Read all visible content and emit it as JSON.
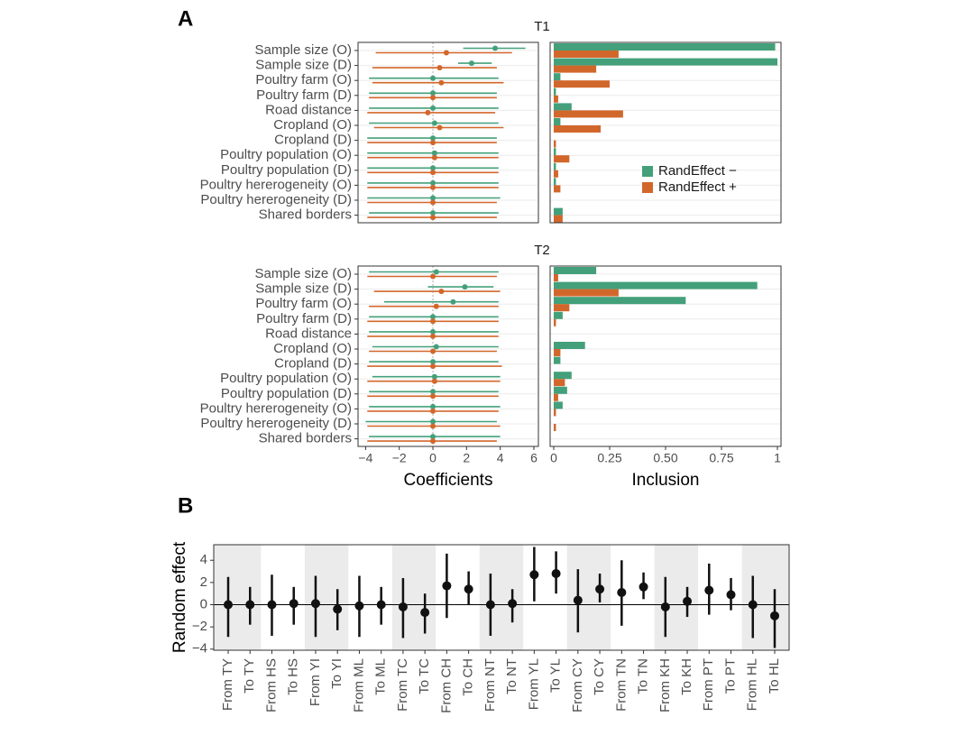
{
  "chart_data": [
    {
      "type": "coef_interval",
      "panel_label": "A",
      "strip": "T1",
      "categories": [
        "Sample size (O)",
        "Sample size (D)",
        "Poultry farm (O)",
        "Poultry farm (D)",
        "Road distance",
        "Cropland (O)",
        "Cropland (D)",
        "Poultry population (O)",
        "Poultry population (D)",
        "Poultry hererogeneity (O)",
        "Poultry hererogeneity (D)",
        "Shared borders"
      ],
      "series": [
        {
          "color": "#43a07a",
          "values": [
            3.7,
            2.3,
            0.0,
            0.0,
            0.0,
            0.1,
            0.0,
            0.1,
            0.0,
            0.0,
            0.0,
            0.0
          ],
          "lower": [
            1.8,
            1.5,
            -3.8,
            -3.8,
            -3.8,
            -3.8,
            -3.9,
            -3.9,
            -3.9,
            -3.9,
            -3.9,
            -3.8
          ],
          "upper": [
            5.5,
            3.5,
            3.9,
            3.8,
            3.9,
            3.9,
            3.8,
            3.9,
            3.9,
            3.9,
            4.0,
            3.9
          ]
        },
        {
          "color": "#d2672b",
          "values": [
            0.8,
            0.4,
            0.5,
            0.0,
            -0.3,
            0.4,
            0.0,
            0.1,
            0.0,
            0.0,
            0.0,
            0.0
          ],
          "lower": [
            -3.4,
            -3.6,
            -3.6,
            -3.8,
            -3.9,
            -3.5,
            -3.9,
            -3.9,
            -3.9,
            -3.9,
            -3.9,
            -3.9
          ],
          "upper": [
            4.7,
            3.8,
            4.2,
            3.8,
            3.7,
            4.2,
            3.8,
            3.9,
            3.9,
            3.9,
            3.8,
            3.8
          ]
        }
      ],
      "xlim": [
        -4.45,
        6.27
      ],
      "reference_x": 0,
      "grid": true
    },
    {
      "type": "bar",
      "series": [
        {
          "name": "RandEffect −",
          "color": "#43a07a",
          "values": [
            0.99,
            1.0,
            0.03,
            0.01,
            0.08,
            0.03,
            0.0,
            0.01,
            0.01,
            0.01,
            0.0,
            0.04
          ]
        },
        {
          "name": "RandEffect +",
          "color": "#d2672b",
          "values": [
            0.29,
            0.19,
            0.25,
            0.02,
            0.31,
            0.21,
            0.01,
            0.07,
            0.02,
            0.03,
            0.0,
            0.04
          ]
        }
      ],
      "xlim": [
        -0.016,
        1.016
      ],
      "grid": true,
      "legend": "center-right"
    },
    {
      "type": "coef_interval",
      "strip": "T2",
      "categories": [
        "Sample size (O)",
        "Sample size (D)",
        "Poultry farm (O)",
        "Poultry farm (D)",
        "Road distance",
        "Cropland (O)",
        "Cropland (D)",
        "Poultry population (O)",
        "Poultry population (D)",
        "Poultry hererogeneity (O)",
        "Poultry hererogeneity (D)",
        "Shared borders"
      ],
      "series": [
        {
          "color": "#43a07a",
          "values": [
            0.2,
            1.9,
            1.2,
            0.0,
            0.0,
            0.2,
            0.0,
            0.1,
            0.0,
            0.0,
            0.0,
            0.0
          ],
          "lower": [
            -3.8,
            -0.3,
            -2.9,
            -3.8,
            -3.8,
            -3.6,
            -3.8,
            -3.6,
            -3.8,
            -3.8,
            -4.0,
            -3.8
          ],
          "upper": [
            3.9,
            3.6,
            3.9,
            3.9,
            3.9,
            3.9,
            3.9,
            4.0,
            3.9,
            4.0,
            3.8,
            4.0
          ]
        },
        {
          "color": "#d2672b",
          "values": [
            0.0,
            0.5,
            0.2,
            0.0,
            0.0,
            0.0,
            0.0,
            0.1,
            0.0,
            0.0,
            0.0,
            0.0
          ],
          "lower": [
            -3.9,
            -3.5,
            -3.8,
            -3.9,
            -3.9,
            -3.8,
            -3.9,
            -3.9,
            -3.9,
            -3.9,
            -3.9,
            -3.9
          ],
          "upper": [
            3.8,
            4.0,
            3.9,
            3.9,
            3.9,
            3.8,
            4.1,
            4.0,
            3.9,
            3.9,
            4.0,
            3.8
          ]
        }
      ],
      "xlim": [
        -4.45,
        6.27
      ],
      "xticks": [
        {
          "value": -4,
          "label": "−4"
        },
        {
          "value": -2,
          "label": "−2"
        },
        0,
        2,
        4,
        6
      ],
      "xlabel": "Coefficients",
      "reference_x": 0,
      "grid": true
    },
    {
      "type": "bar",
      "series": [
        {
          "color": "#43a07a",
          "values": [
            0.19,
            0.91,
            0.59,
            0.04,
            0.0,
            0.14,
            0.03,
            0.08,
            0.06,
            0.04,
            0.0,
            0.0
          ]
        },
        {
          "color": "#d2672b",
          "values": [
            0.02,
            0.29,
            0.07,
            0.01,
            0.0,
            0.03,
            0.0,
            0.05,
            0.02,
            0.01,
            0.01,
            0.0
          ]
        }
      ],
      "xlim": [
        -0.016,
        1.016
      ],
      "xticks": [
        0,
        0.25,
        {
          "value": 0.5,
          "label": "0.50"
        },
        0.75,
        1
      ],
      "xlabel": "Inclusion",
      "grid": true
    },
    {
      "type": "point_range",
      "panel_label": "B",
      "ylabel": "Random effect",
      "categories": [
        "From TY",
        "To TY",
        "From HS",
        "To HS",
        "From YI",
        "To YI",
        "From ML",
        "To ML",
        "From TC",
        "To TC",
        "From CH",
        "To CH",
        "From NT",
        "To NT",
        "From YL",
        "To YL",
        "From CY",
        "To CY",
        "From TN",
        "To TN",
        "From KH",
        "To KH",
        "From PT",
        "To PT",
        "From HL",
        "To HL"
      ],
      "values": [
        0.0,
        0.0,
        0.0,
        0.1,
        0.1,
        -0.4,
        -0.1,
        0.0,
        -0.2,
        -0.7,
        1.7,
        1.4,
        0.0,
        0.1,
        2.7,
        2.8,
        0.4,
        1.4,
        1.1,
        1.6,
        -0.2,
        0.3,
        1.3,
        0.9,
        0.0,
        -1.0
      ],
      "lower": [
        -2.9,
        -1.8,
        -2.8,
        -1.8,
        -2.9,
        -2.3,
        -2.9,
        -1.8,
        -3.0,
        -2.6,
        -1.2,
        0.0,
        -2.8,
        -1.6,
        0.3,
        1.0,
        -2.5,
        0.2,
        -1.9,
        0.5,
        -2.9,
        -1.1,
        -0.9,
        -0.5,
        -3.0,
        -3.9
      ],
      "upper": [
        2.5,
        1.6,
        2.7,
        1.6,
        2.6,
        1.4,
        2.6,
        1.6,
        2.4,
        1.0,
        4.6,
        3.0,
        2.8,
        1.4,
        5.2,
        4.8,
        3.2,
        2.8,
        4.0,
        2.9,
        2.5,
        1.6,
        3.7,
        2.4,
        2.6,
        1.4
      ],
      "color": "#111111",
      "ylim": [
        -4.1,
        5.4
      ],
      "yticks": [
        {
          "value": -4,
          "label": "−4"
        },
        {
          "value": -2,
          "label": "−2"
        },
        0,
        2,
        4
      ],
      "reference_y": 0,
      "band_shading": true
    }
  ]
}
